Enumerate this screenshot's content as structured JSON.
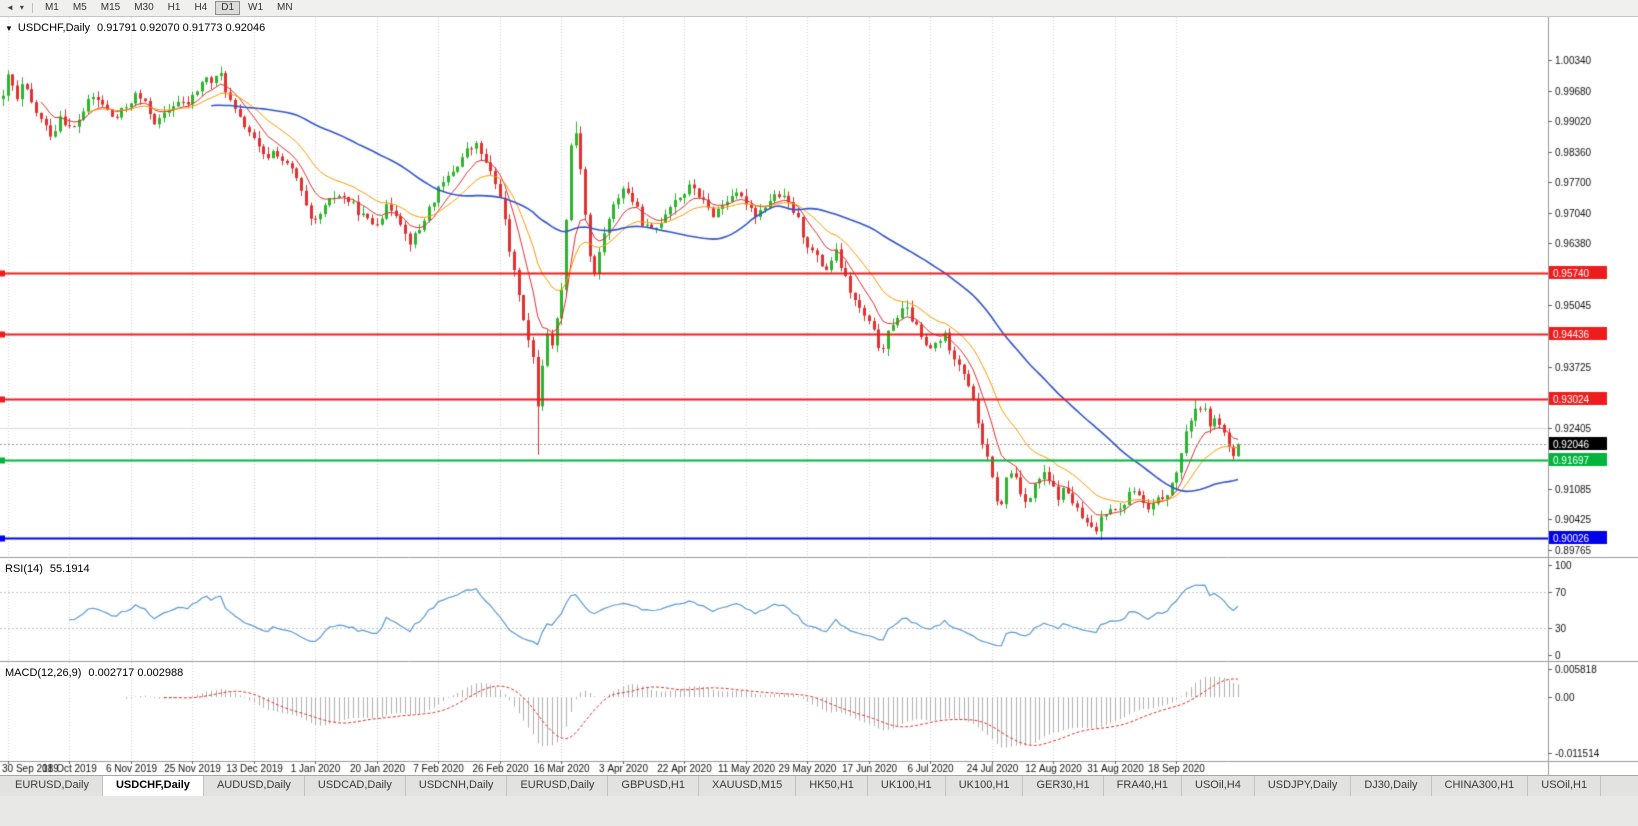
{
  "icons": {
    "chart_menu": "▼",
    "scroll_left": "◄",
    "toolbar_caret": "▾"
  },
  "toolbar": {
    "timeframes": [
      "M1",
      "M5",
      "M15",
      "M30",
      "H1",
      "H4",
      "D1",
      "W1",
      "MN"
    ],
    "active_timeframe": "D1"
  },
  "chart": {
    "title": "USDCHF,Daily",
    "ohlc": "0.91791 0.92070 0.91773 0.92046",
    "open": "0.91791",
    "high": "0.92070",
    "low": "0.91773",
    "close": "0.92046"
  },
  "indicators": {
    "rsi": {
      "label": "RSI(14)",
      "value": "55.1914"
    },
    "macd": {
      "label": "MACD(12,26,9)",
      "values": "0.002717 0.002988"
    }
  },
  "tabbar": {
    "active_index": 1,
    "tabs": [
      "EURUSD,Daily",
      "USDCHF,Daily",
      "AUDUSD,Daily",
      "USDCAD,Daily",
      "USDCNH,Daily",
      "EURUSD,Daily",
      "GBPUSD,H1",
      "XAUUSD,M15",
      "HK50,H1",
      "UK100,H1",
      "UK100,H1",
      "GER30,H1",
      "FRA40,H1",
      "USOil,H4",
      "USDJPY,Daily",
      "DJ30,Daily",
      "CHINA300,H1",
      "USOil,H1"
    ]
  },
  "chart_data": {
    "type": "candlestick",
    "symbol": "USDCHF",
    "timeframe": "Daily",
    "price_axis_ticks": [
      "1.00340",
      "0.99680",
      "0.99020",
      "0.98360",
      "0.97700",
      "0.97040",
      "0.96380",
      "0.95045",
      "0.93725",
      "0.92405",
      "0.91085",
      "0.90425",
      "0.89765"
    ],
    "price_top": 1.01268,
    "price_bottom": 0.89614,
    "horizontal_lines": [
      {
        "price": 0.9574,
        "label": "0.95740",
        "color": "#ee1c1c",
        "width": 2
      },
      {
        "price": 0.94436,
        "label": "0.94436",
        "color": "#ee1c1c",
        "width": 2
      },
      {
        "price": 0.93024,
        "label": "0.93024",
        "color": "#ee1c1c",
        "width": 2
      },
      {
        "price": 0.91697,
        "label": "0.91697",
        "color": "#00b43c",
        "width": 2
      },
      {
        "price": 0.90026,
        "label": "0.90026",
        "color": "#0000ee",
        "width": 2
      }
    ],
    "silver_line": 0.92405,
    "current_price": {
      "price": 0.92046,
      "label": "0.92046",
      "bg": "#000000"
    },
    "rsi_axis": [
      "100",
      "70",
      "30",
      "0"
    ],
    "rsi_levels": [
      70,
      30
    ],
    "macd_axis": [
      "0.005818",
      "0.00",
      "-0.011514"
    ],
    "date_labels": [
      "30 Sep 2019",
      "18 Oct 2019",
      "6 Nov 2019",
      "25 Nov 2019",
      "13 Dec 2019",
      "1 Jan 2020",
      "20 Jan 2020",
      "7 Feb 2020",
      "26 Feb 2020",
      "16 Mar 2020",
      "3 Apr 2020",
      "22 Apr 2020",
      "11 May 2020",
      "29 May 2020",
      "17 Jun 2020",
      "6 Jul 2020",
      "24 Jul 2020",
      "12 Aug 2020",
      "31 Aug 2020",
      "18 Sep 2020"
    ],
    "candles_count": 262,
    "label_every": 13,
    "noise_seed": 42,
    "noise_amp": 0.0009,
    "wick_amp": 0.0016,
    "ma_periods": {
      "fast": 8,
      "mid": 18,
      "slow": 45
    },
    "last_candle": {
      "o": 0.91791,
      "h": 0.9207,
      "l": 0.91773,
      "c": 0.92046
    },
    "wick_events": [
      {
        "f": 0.433,
        "low": 0.9182
      },
      {
        "f": 0.462,
        "high": 0.9901
      },
      {
        "f": 0.889,
        "low": 0.8998
      },
      {
        "f": 0.966,
        "high": 0.9302
      }
    ],
    "close_path": [
      [
        0.0,
        0.995
      ],
      [
        0.004,
        1.0
      ],
      [
        0.008,
        0.9975
      ],
      [
        0.012,
        0.994
      ],
      [
        0.016,
        0.9985
      ],
      [
        0.022,
        0.9945
      ],
      [
        0.028,
        0.9915
      ],
      [
        0.034,
        0.989
      ],
      [
        0.04,
        0.987
      ],
      [
        0.046,
        0.9915
      ],
      [
        0.056,
        0.988
      ],
      [
        0.064,
        0.992
      ],
      [
        0.072,
        0.9955
      ],
      [
        0.08,
        0.994
      ],
      [
        0.09,
        0.9905
      ],
      [
        0.1,
        0.9935
      ],
      [
        0.108,
        0.996
      ],
      [
        0.116,
        0.9935
      ],
      [
        0.124,
        0.9895
      ],
      [
        0.132,
        0.992
      ],
      [
        0.14,
        0.9945
      ],
      [
        0.148,
        0.9935
      ],
      [
        0.155,
        0.996
      ],
      [
        0.163,
        0.9995
      ],
      [
        0.17,
        0.9985
      ],
      [
        0.176,
        1.0005
      ],
      [
        0.182,
        0.9955
      ],
      [
        0.19,
        0.991
      ],
      [
        0.198,
        0.9885
      ],
      [
        0.205,
        0.985
      ],
      [
        0.212,
        0.982
      ],
      [
        0.22,
        0.984
      ],
      [
        0.228,
        0.981
      ],
      [
        0.236,
        0.979
      ],
      [
        0.244,
        0.9725
      ],
      [
        0.25,
        0.9675
      ],
      [
        0.254,
        0.969
      ],
      [
        0.262,
        0.972
      ],
      [
        0.27,
        0.9745
      ],
      [
        0.28,
        0.973
      ],
      [
        0.29,
        0.97
      ],
      [
        0.298,
        0.968
      ],
      [
        0.304,
        0.969
      ],
      [
        0.312,
        0.972
      ],
      [
        0.32,
        0.97
      ],
      [
        0.328,
        0.964
      ],
      [
        0.336,
        0.966
      ],
      [
        0.344,
        0.971
      ],
      [
        0.353,
        0.9755
      ],
      [
        0.36,
        0.978
      ],
      [
        0.368,
        0.981
      ],
      [
        0.376,
        0.984
      ],
      [
        0.384,
        0.985
      ],
      [
        0.39,
        0.9815
      ],
      [
        0.396,
        0.978
      ],
      [
        0.403,
        0.974
      ],
      [
        0.408,
        0.965
      ],
      [
        0.413,
        0.958
      ],
      [
        0.418,
        0.953
      ],
      [
        0.424,
        0.944
      ],
      [
        0.429,
        0.939
      ],
      [
        0.433,
        0.929
      ],
      [
        0.436,
        0.936
      ],
      [
        0.44,
        0.9455
      ],
      [
        0.444,
        0.9405
      ],
      [
        0.448,
        0.948
      ],
      [
        0.452,
        0.953
      ],
      [
        0.456,
        0.97
      ],
      [
        0.46,
        0.986
      ],
      [
        0.464,
        0.988
      ],
      [
        0.468,
        0.979
      ],
      [
        0.472,
        0.968
      ],
      [
        0.476,
        0.959
      ],
      [
        0.48,
        0.956
      ],
      [
        0.484,
        0.9645
      ],
      [
        0.49,
        0.9685
      ],
      [
        0.496,
        0.973
      ],
      [
        0.502,
        0.976
      ],
      [
        0.51,
        0.973
      ],
      [
        0.518,
        0.968
      ],
      [
        0.526,
        0.966
      ],
      [
        0.534,
        0.9695
      ],
      [
        0.542,
        0.973
      ],
      [
        0.551,
        0.9745
      ],
      [
        0.558,
        0.9765
      ],
      [
        0.566,
        0.973
      ],
      [
        0.574,
        0.97
      ],
      [
        0.582,
        0.972
      ],
      [
        0.59,
        0.9745
      ],
      [
        0.601,
        0.973
      ],
      [
        0.61,
        0.97
      ],
      [
        0.618,
        0.9725
      ],
      [
        0.626,
        0.9745
      ],
      [
        0.634,
        0.973
      ],
      [
        0.642,
        0.97
      ],
      [
        0.65,
        0.964
      ],
      [
        0.658,
        0.961
      ],
      [
        0.666,
        0.958
      ],
      [
        0.674,
        0.962
      ],
      [
        0.682,
        0.956
      ],
      [
        0.69,
        0.951
      ],
      [
        0.7,
        0.947
      ],
      [
        0.706,
        0.944
      ],
      [
        0.712,
        0.9395
      ],
      [
        0.718,
        0.946
      ],
      [
        0.724,
        0.948
      ],
      [
        0.73,
        0.95
      ],
      [
        0.737,
        0.947
      ],
      [
        0.743,
        0.9435
      ],
      [
        0.749,
        0.9405
      ],
      [
        0.756,
        0.9425
      ],
      [
        0.762,
        0.944
      ],
      [
        0.768,
        0.9405
      ],
      [
        0.774,
        0.938
      ],
      [
        0.78,
        0.935
      ],
      [
        0.786,
        0.929
      ],
      [
        0.792,
        0.922
      ],
      [
        0.799,
        0.915
      ],
      [
        0.804,
        0.909
      ],
      [
        0.808,
        0.9065
      ],
      [
        0.812,
        0.913
      ],
      [
        0.818,
        0.915
      ],
      [
        0.824,
        0.91
      ],
      [
        0.83,
        0.908
      ],
      [
        0.836,
        0.912
      ],
      [
        0.842,
        0.914
      ],
      [
        0.848,
        0.912
      ],
      [
        0.854,
        0.909
      ],
      [
        0.86,
        0.911
      ],
      [
        0.866,
        0.908
      ],
      [
        0.872,
        0.905
      ],
      [
        0.878,
        0.903
      ],
      [
        0.884,
        0.9012
      ],
      [
        0.89,
        0.9055
      ],
      [
        0.898,
        0.9075
      ],
      [
        0.904,
        0.906
      ],
      [
        0.91,
        0.909
      ],
      [
        0.916,
        0.911
      ],
      [
        0.922,
        0.908
      ],
      [
        0.928,
        0.906
      ],
      [
        0.934,
        0.908
      ],
      [
        0.94,
        0.9095
      ],
      [
        0.947,
        0.9115
      ],
      [
        0.952,
        0.9165
      ],
      [
        0.957,
        0.9215
      ],
      [
        0.962,
        0.9265
      ],
      [
        0.967,
        0.929
      ],
      [
        0.972,
        0.928
      ],
      [
        0.978,
        0.9245
      ],
      [
        0.984,
        0.926
      ],
      [
        0.99,
        0.9215
      ],
      [
        0.996,
        0.918
      ],
      [
        1.0,
        0.92046
      ]
    ],
    "colors": {
      "up": "#2db32d",
      "down": "#e03131",
      "ma_fast": "#e03131",
      "ma_mid": "#ff9900",
      "ma_slow": "#3355cc",
      "rsi": "#5b9bd5",
      "macd_hist": "#b0b0b0",
      "macd_signal": "#e03131",
      "grid": "#d4d4d4"
    }
  }
}
